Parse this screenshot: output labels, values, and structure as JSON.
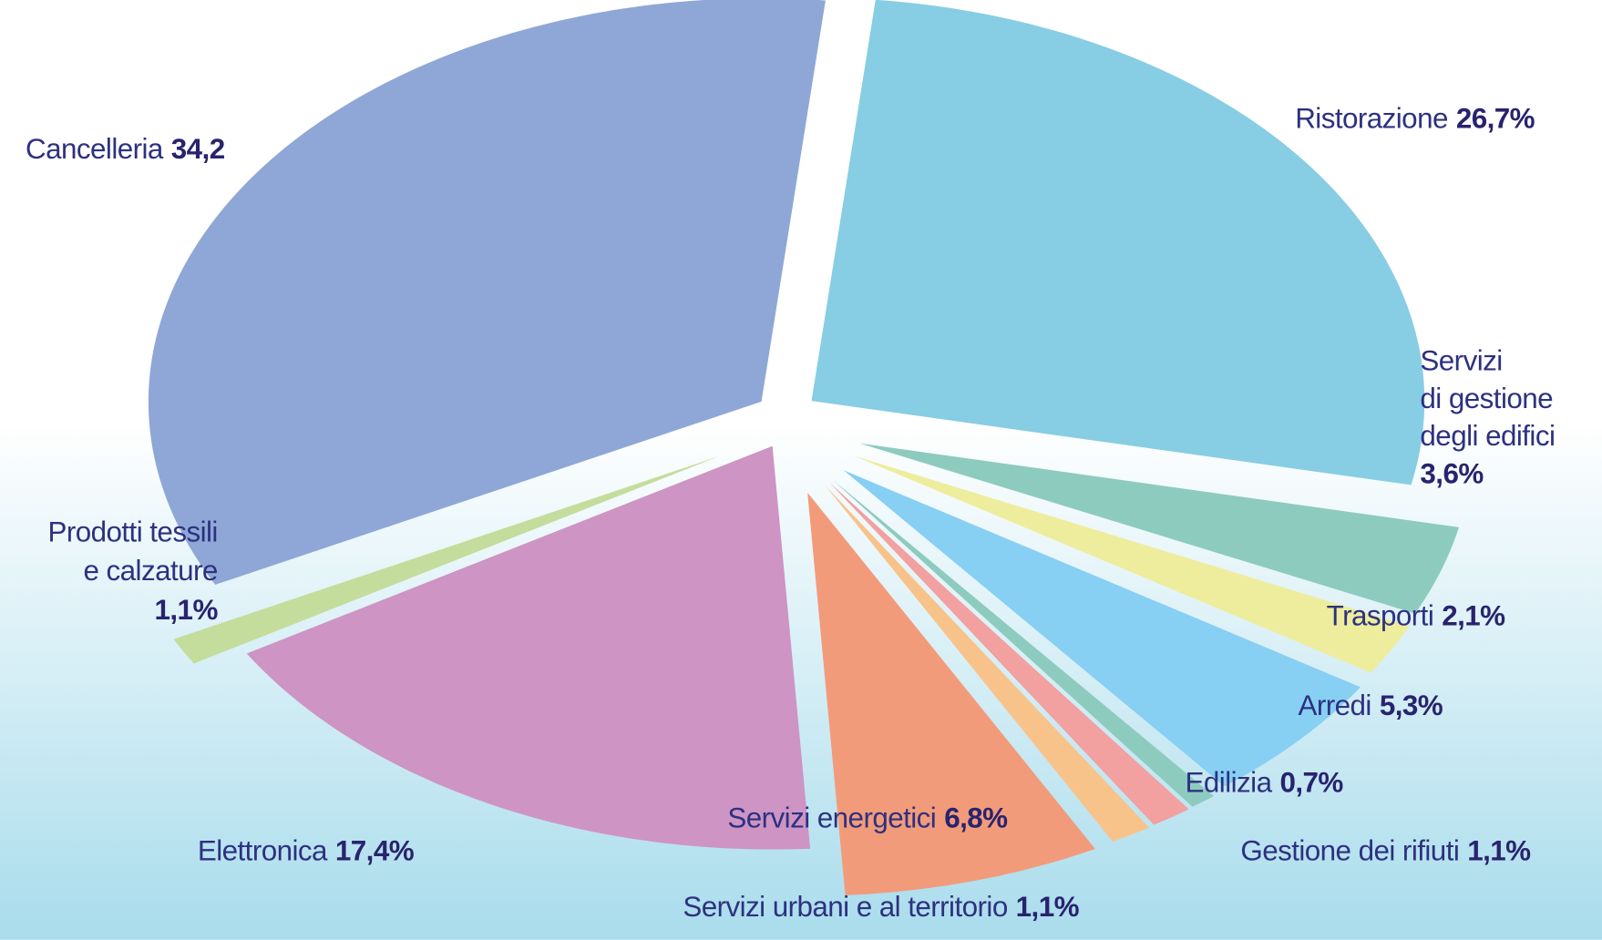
{
  "chart_data": {
    "type": "pie",
    "categories": [
      "Ristorazione",
      [
        "Servizi",
        "di gestione",
        "degli edifici"
      ],
      "Trasporti",
      "Arredi",
      "Edilizia",
      "Gestione dei rifiuti",
      "Servizi urbani e al territorio",
      "Servizi energetici",
      "Elettronica",
      [
        "Prodotti tessili",
        "e calzature"
      ],
      "Cancelleria"
    ],
    "values": [
      26.7,
      3.6,
      2.1,
      5.3,
      0.7,
      1.1,
      1.1,
      6.8,
      17.4,
      1.1,
      34.2
    ],
    "value_labels": [
      "26,7%",
      "3,6%",
      "2,1%",
      "5,3%",
      "0,7%",
      "1,1%",
      "1,1%",
      "6,8%",
      "17,4%",
      "1,1%",
      "34,2"
    ],
    "colors": [
      "#87cde4",
      "#8dcbbf",
      "#eeed9d",
      "#87cff3",
      "#8dcbbf",
      "#f2a0a0",
      "#f8c38a",
      "#f29b7a",
      "#cd94c4",
      "#c4dd9c",
      "#8fa7d6"
    ]
  }
}
